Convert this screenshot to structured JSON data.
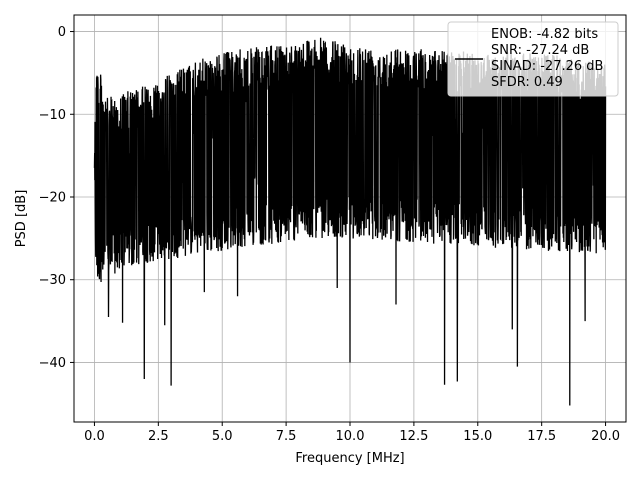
{
  "chart_data": {
    "type": "line",
    "xlabel": "Frequency [MHz]",
    "ylabel": "PSD [dB]",
    "xlim": [
      -0.8,
      20.8
    ],
    "ylim": [
      -47.2,
      2.0
    ],
    "xticks": [
      0.0,
      2.5,
      5.0,
      7.5,
      10.0,
      12.5,
      15.0,
      17.5,
      20.0
    ],
    "xtick_labels": [
      "0.0",
      "2.5",
      "5.0",
      "7.5",
      "10.0",
      "12.5",
      "15.0",
      "17.5",
      "20.0"
    ],
    "yticks": [
      0,
      -10,
      -20,
      -30,
      -40
    ],
    "ytick_labels": [
      "0",
      "−10",
      "−20",
      "−30",
      "−40"
    ],
    "grid": true,
    "legend_position": "top-right",
    "series": [
      {
        "name": "",
        "color": "#000000",
        "x_range": [
          0.0,
          20.0
        ],
        "envelope": {
          "x": [
            0.0,
            0.05,
            0.1,
            0.5,
            1.0,
            2.0,
            3.0,
            4.0,
            5.0,
            6.0,
            7.5,
            8.5,
            10.0,
            12.5,
            15.0,
            17.5,
            20.0
          ],
          "upper": [
            -10.5,
            -2.5,
            -3.5,
            -8.0,
            -7.5,
            -6.5,
            -5.0,
            -3.5,
            -2.5,
            -2.0,
            -1.5,
            -0.5,
            -1.5,
            -2.0,
            -2.5,
            -2.5,
            -4.0
          ],
          "lower": [
            -18.0,
            -28.0,
            -30.5,
            -30.0,
            -29.0,
            -28.0,
            -27.5,
            -27.0,
            -26.5,
            -26.0,
            -25.5,
            -25.0,
            -25.0,
            -25.5,
            -26.0,
            -26.5,
            -27.0
          ]
        },
        "deep_dips": [
          {
            "x": 0.55,
            "y": -34.5
          },
          {
            "x": 1.1,
            "y": -35.2
          },
          {
            "x": 1.95,
            "y": -42.0
          },
          {
            "x": 2.75,
            "y": -35.5
          },
          {
            "x": 3.0,
            "y": -42.8
          },
          {
            "x": 4.3,
            "y": -31.5
          },
          {
            "x": 5.6,
            "y": -32.0
          },
          {
            "x": 9.5,
            "y": -31.0
          },
          {
            "x": 10.0,
            "y": -40.0
          },
          {
            "x": 11.8,
            "y": -33.0
          },
          {
            "x": 13.7,
            "y": -42.7
          },
          {
            "x": 14.2,
            "y": -42.3
          },
          {
            "x": 16.35,
            "y": -36.0
          },
          {
            "x": 16.55,
            "y": -40.5
          },
          {
            "x": 18.6,
            "y": -45.2
          },
          {
            "x": 19.2,
            "y": -35.0
          }
        ]
      }
    ],
    "legend": {
      "entries": [
        "ENOB: -4.82 bits",
        "SNR: -27.24 dB",
        "SINAD: -27.26 dB",
        "SFDR: 0.49"
      ]
    }
  }
}
